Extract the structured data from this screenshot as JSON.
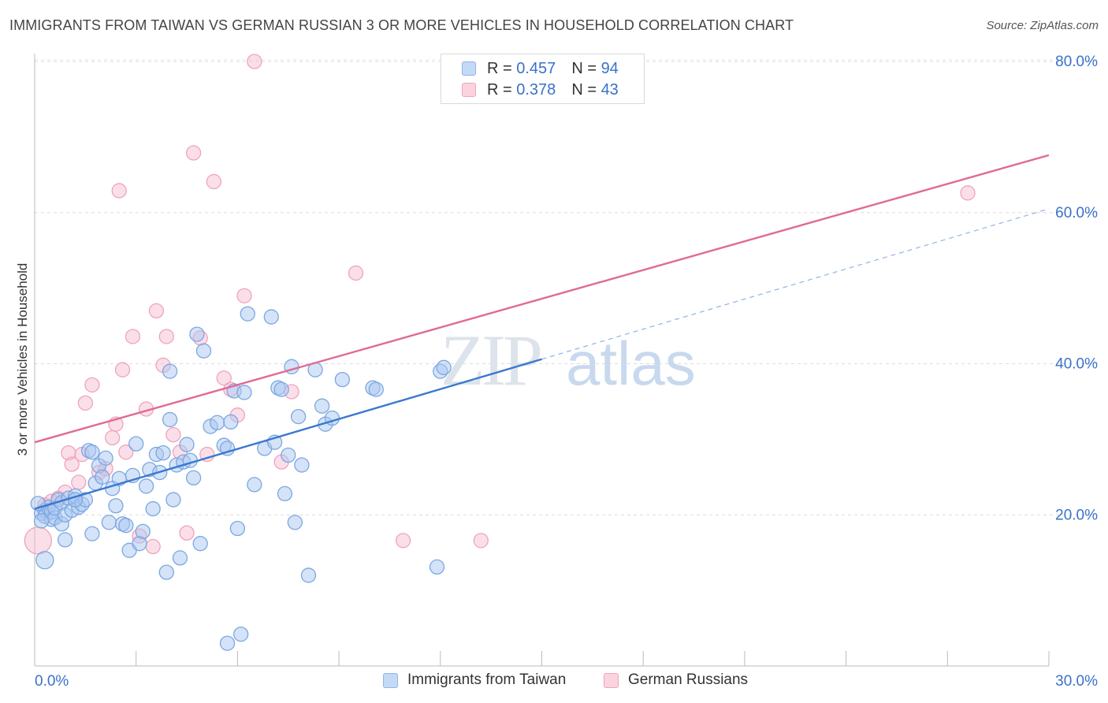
{
  "title": "IMMIGRANTS FROM TAIWAN VS GERMAN RUSSIAN 3 OR MORE VEHICLES IN HOUSEHOLD CORRELATION CHART",
  "source": "Source: ZipAtlas.com",
  "watermark": {
    "zip": "ZIP",
    "atlas": "atlas"
  },
  "legend_top": {
    "rows": [
      {
        "r_label": "R =",
        "r_value": "0.457",
        "n_label": "N =",
        "n_value": "94",
        "color": "#a9c8f0"
      },
      {
        "r_label": "R =",
        "r_value": "0.378",
        "n_label": "N =",
        "n_value": "43",
        "color": "#f5b8cc"
      }
    ]
  },
  "legend_bottom": {
    "items": [
      {
        "label": "Immigrants from Taiwan",
        "color": "#a9c8f0"
      },
      {
        "label": "German Russians",
        "color": "#f5b8cc"
      }
    ]
  },
  "chart_data": {
    "type": "scatter",
    "title": "IMMIGRANTS FROM TAIWAN VS GERMAN RUSSIAN 3 OR MORE VEHICLES IN HOUSEHOLD CORRELATION CHART",
    "xlabel": "",
    "ylabel": "3 or more Vehicles in Household",
    "xlim": [
      0,
      30
    ],
    "ylim": [
      0,
      80
    ],
    "x_tick_labels": [
      "0.0%",
      "30.0%"
    ],
    "y_tick_labels": [
      "20.0%",
      "40.0%",
      "60.0%",
      "80.0%"
    ],
    "y_ticks": [
      20,
      40,
      60,
      80
    ],
    "x_minor_ticks": [
      0,
      3,
      6,
      9,
      12,
      15,
      18,
      21,
      24,
      27,
      30
    ],
    "grid": true,
    "legend_position": "top-center",
    "series": [
      {
        "name": "Immigrants from Taiwan",
        "color": "#3a78d0",
        "fill": "#a9c8f0",
        "trend": {
          "x0": 0,
          "y0": 20.8,
          "x1": 15,
          "y1": 40.6,
          "dash_to_x": 30,
          "dash_to_y": 60.5
        },
        "points": [
          [
            0.2,
            20.2
          ],
          [
            0.3,
            20.6
          ],
          [
            0.3,
            19.8
          ],
          [
            0.4,
            21.0
          ],
          [
            0.5,
            19.4
          ],
          [
            0.5,
            20.4
          ],
          [
            0.6,
            19.6
          ],
          [
            0.6,
            20.9
          ],
          [
            0.7,
            22.0
          ],
          [
            0.8,
            21.6
          ],
          [
            0.8,
            18.8
          ],
          [
            0.9,
            20.0
          ],
          [
            0.9,
            16.7
          ],
          [
            1.0,
            22.2
          ],
          [
            1.1,
            20.6
          ],
          [
            1.2,
            22.5
          ],
          [
            1.3,
            21.0
          ],
          [
            1.4,
            21.4
          ],
          [
            1.5,
            22.0
          ],
          [
            1.6,
            28.5
          ],
          [
            1.7,
            28.3
          ],
          [
            1.7,
            17.5
          ],
          [
            1.8,
            24.2
          ],
          [
            1.9,
            26.5
          ],
          [
            2.0,
            25.0
          ],
          [
            2.1,
            27.5
          ],
          [
            2.2,
            19.0
          ],
          [
            2.3,
            23.5
          ],
          [
            2.4,
            21.2
          ],
          [
            2.5,
            24.8
          ],
          [
            2.6,
            18.8
          ],
          [
            2.7,
            18.6
          ],
          [
            2.8,
            15.3
          ],
          [
            2.9,
            25.2
          ],
          [
            3.0,
            29.4
          ],
          [
            3.1,
            16.2
          ],
          [
            3.2,
            17.8
          ],
          [
            3.3,
            23.8
          ],
          [
            3.4,
            26.0
          ],
          [
            3.5,
            20.8
          ],
          [
            3.6,
            28.0
          ],
          [
            3.7,
            25.6
          ],
          [
            3.8,
            28.2
          ],
          [
            3.9,
            12.4
          ],
          [
            4.0,
            32.6
          ],
          [
            4.1,
            22.0
          ],
          [
            4.2,
            26.6
          ],
          [
            4.3,
            14.3
          ],
          [
            4.4,
            27.0
          ],
          [
            4.5,
            29.3
          ],
          [
            4.6,
            27.2
          ],
          [
            4.7,
            24.9
          ],
          [
            4.8,
            43.9
          ],
          [
            4.9,
            16.2
          ],
          [
            5.0,
            41.7
          ],
          [
            5.2,
            31.7
          ],
          [
            5.4,
            32.2
          ],
          [
            5.6,
            29.2
          ],
          [
            5.7,
            28.8
          ],
          [
            5.8,
            32.3
          ],
          [
            5.9,
            36.4
          ],
          [
            6.0,
            18.2
          ],
          [
            6.1,
            4.2
          ],
          [
            6.2,
            36.2
          ],
          [
            6.3,
            46.6
          ],
          [
            6.5,
            24.0
          ],
          [
            6.8,
            28.8
          ],
          [
            7.0,
            46.2
          ],
          [
            7.1,
            29.6
          ],
          [
            7.2,
            36.8
          ],
          [
            7.3,
            36.6
          ],
          [
            7.4,
            22.8
          ],
          [
            7.5,
            27.9
          ],
          [
            7.6,
            39.6
          ],
          [
            7.7,
            19.0
          ],
          [
            7.8,
            33.0
          ],
          [
            7.9,
            26.6
          ],
          [
            8.1,
            12.0
          ],
          [
            8.3,
            39.2
          ],
          [
            8.5,
            34.4
          ],
          [
            8.6,
            32.0
          ],
          [
            8.8,
            32.8
          ],
          [
            9.1,
            37.9
          ],
          [
            10.0,
            36.8
          ],
          [
            10.1,
            36.6
          ],
          [
            11.9,
            13.1
          ],
          [
            12.0,
            39.0
          ],
          [
            12.1,
            39.5
          ],
          [
            0.1,
            21.5
          ],
          [
            0.2,
            19.2
          ],
          [
            0.3,
            14.0
          ],
          [
            1.2,
            22.0
          ],
          [
            5.7,
            3.0
          ],
          [
            4.0,
            39.0
          ]
        ],
        "sizes_large": [
          [
            0.3,
            14.0
          ]
        ]
      },
      {
        "name": "German Russians",
        "color": "#e06a94",
        "fill": "#f5b8cc",
        "trend": {
          "x0": 0,
          "y0": 29.6,
          "x1": 30,
          "y1": 67.6
        },
        "points": [
          [
            0.1,
            16.6
          ],
          [
            0.3,
            21.3
          ],
          [
            0.5,
            21.8
          ],
          [
            0.7,
            22.2
          ],
          [
            0.9,
            23.0
          ],
          [
            1.0,
            28.2
          ],
          [
            1.1,
            26.7
          ],
          [
            1.3,
            24.3
          ],
          [
            1.4,
            28.0
          ],
          [
            1.5,
            34.8
          ],
          [
            1.7,
            37.2
          ],
          [
            1.9,
            25.6
          ],
          [
            2.1,
            26.1
          ],
          [
            2.3,
            30.2
          ],
          [
            2.4,
            32.0
          ],
          [
            2.5,
            62.9
          ],
          [
            2.6,
            39.2
          ],
          [
            2.7,
            28.3
          ],
          [
            2.9,
            43.6
          ],
          [
            3.1,
            17.2
          ],
          [
            3.3,
            34.0
          ],
          [
            3.5,
            15.8
          ],
          [
            3.6,
            47.0
          ],
          [
            3.8,
            39.8
          ],
          [
            3.9,
            43.6
          ],
          [
            4.1,
            30.6
          ],
          [
            4.3,
            28.3
          ],
          [
            4.5,
            17.6
          ],
          [
            4.7,
            67.9
          ],
          [
            4.9,
            43.4
          ],
          [
            5.1,
            28.0
          ],
          [
            5.3,
            64.1
          ],
          [
            5.6,
            38.1
          ],
          [
            5.8,
            36.6
          ],
          [
            6.0,
            33.2
          ],
          [
            6.2,
            49.0
          ],
          [
            6.5,
            80.0
          ],
          [
            7.3,
            27.0
          ],
          [
            7.6,
            36.3
          ],
          [
            9.5,
            52.0
          ],
          [
            10.9,
            16.6
          ],
          [
            13.2,
            16.6
          ],
          [
            27.6,
            62.6
          ]
        ]
      }
    ]
  }
}
